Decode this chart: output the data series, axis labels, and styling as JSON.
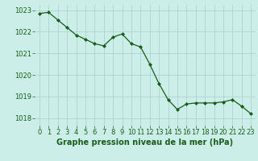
{
  "x": [
    0,
    1,
    2,
    3,
    4,
    5,
    6,
    7,
    8,
    9,
    10,
    11,
    12,
    13,
    14,
    15,
    16,
    17,
    18,
    19,
    20,
    21,
    22,
    23
  ],
  "y": [
    1022.85,
    1022.9,
    1022.55,
    1022.2,
    1021.85,
    1021.65,
    1021.45,
    1021.35,
    1021.75,
    1021.9,
    1021.45,
    1021.3,
    1020.5,
    1019.6,
    1018.85,
    1018.4,
    1018.65,
    1018.7,
    1018.7,
    1018.7,
    1018.75,
    1018.85,
    1018.55,
    1018.2
  ],
  "line_color": "#1a5c1a",
  "marker": "D",
  "marker_size": 2.0,
  "background_color": "#cceee8",
  "grid_color": "#aacccc",
  "xlabel": "Graphe pression niveau de la mer (hPa)",
  "xlabel_fontsize": 7,
  "xlabel_color": "#1a5c1a",
  "xlabel_weight": "bold",
  "yticks": [
    1018,
    1019,
    1020,
    1021,
    1022,
    1023
  ],
  "xticks": [
    0,
    1,
    2,
    3,
    4,
    5,
    6,
    7,
    8,
    9,
    10,
    11,
    12,
    13,
    14,
    15,
    16,
    17,
    18,
    19,
    20,
    21,
    22,
    23
  ],
  "ylim": [
    1017.65,
    1023.25
  ],
  "xlim": [
    -0.5,
    23.5
  ],
  "tick_color": "#1a5c1a",
  "tick_fontsize": 6.0,
  "linewidth": 0.9
}
